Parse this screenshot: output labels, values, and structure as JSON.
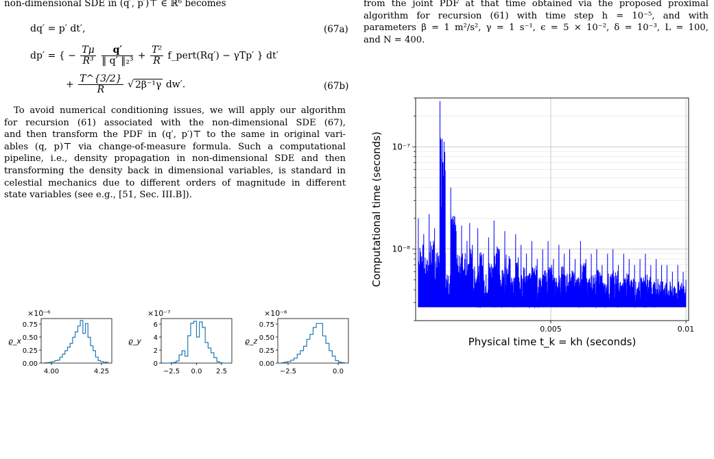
{
  "left": {
    "top_line": "non-dimensional SDE in (q′, p′)⊤ ∈ ℝ⁶ becomes",
    "eq67a": {
      "lhs": "dq′ = p′ dt′,",
      "num": "(67a)"
    },
    "eq67b": {
      "lhs": "dp′ =",
      "line1_a": "{ −",
      "t1_num": "Tμ",
      "t1_den": "R³",
      "t2_num": "q′",
      "t2_den": "‖ q′ ‖₂³",
      "plus": "+",
      "t3_num": "T²",
      "t3_den": "R",
      "t3_rest": "f_pert(Rq′) − γTp′ } dt′",
      "line2_plus": "+",
      "t4_num": "T^{3/2}",
      "t4_den": "R",
      "sqrt_arg": "2β⁻¹γ",
      "t4_rest": "dw′.",
      "num": "(67b)"
    },
    "paragraph": [
      "To avoid numerical conditioning issues, we will apply our algorithm",
      "for recursion (61) associated with the non-dimensional SDE (67),",
      "and then transform the PDF in (q′, p′)⊤ to the same in original vari-",
      "ables (q, p)⊤ via change-of-measure formula. Such a computational",
      "pipeline, i.e., density propagation in non-dimensional SDE and then",
      "transforming the density back in dimensional variables, is standard in",
      "celestial mechanics due to different orders of magnitude in different",
      "state variables (see e.g., [51, Sec. III.B])."
    ],
    "small_plots": [
      {
        "scale": "×10⁻⁶",
        "ylabel": "ϱ_x",
        "yticks": [
          "0.00",
          "0.25",
          "0.50",
          "0.75"
        ],
        "xticks": [
          "4.00",
          "4.25"
        ],
        "values": [
          0.01,
          0.01,
          0.02,
          0.03,
          0.05,
          0.06,
          0.12,
          0.18,
          0.25,
          0.32,
          0.4,
          0.52,
          0.63,
          0.75,
          0.86,
          0.6,
          0.8,
          0.52,
          0.35,
          0.25,
          0.12,
          0.05,
          0.03,
          0.02,
          0.02
        ]
      },
      {
        "scale": "×10⁻⁷",
        "ylabel": "ϱ_y",
        "yticks": [
          "0",
          "2",
          "4",
          "6"
        ],
        "xticks": [
          "−2.5",
          "0.0",
          "2.5"
        ],
        "values": [
          0.0,
          0.0,
          0.05,
          0.1,
          0.3,
          1.2,
          1.8,
          1.0,
          4.0,
          5.8,
          6.1,
          3.8,
          6.0,
          5.2,
          3.0,
          2.2,
          1.5,
          0.8,
          0.2,
          0.05,
          0.0,
          0.0
        ]
      },
      {
        "scale": "×10⁻⁶",
        "ylabel": "ϱ_z",
        "yticks": [
          "0.00",
          "0.25",
          "0.50",
          "0.75"
        ],
        "xticks": [
          "−2.5",
          "0.0"
        ],
        "values": [
          0.01,
          0.02,
          0.03,
          0.06,
          0.1,
          0.18,
          0.25,
          0.34,
          0.48,
          0.58,
          0.72,
          0.8,
          0.8,
          0.55,
          0.4,
          0.25,
          0.14,
          0.05,
          0.02,
          0.01
        ]
      }
    ]
  },
  "right": {
    "caption": [
      "from the joint PDF at that time obtained via the proposed proximal",
      "algorithm for recursion (61) with time step h = 10⁻⁵, and with",
      "parameters β = 1 m²/s², γ = 1 s⁻¹, ϵ = 5 × 10⁻², δ = 10⁻³, L = 100,",
      "and N = 400."
    ]
  },
  "chart_data": {
    "type": "line",
    "xlabel": "Physical time t_k = kh (seconds)",
    "ylabel": "Computational time (seconds)",
    "yscale": "log",
    "xlim": [
      0,
      0.0101
    ],
    "ylim": [
      2e-09,
      3e-07
    ],
    "xticks": [
      0.005,
      0.01
    ],
    "xtick_labels": [
      "0.005",
      "0.01"
    ],
    "yticks": [
      1e-08,
      1e-07
    ],
    "ytick_labels": [
      "10⁻⁸",
      "10⁻⁷"
    ],
    "grid": true,
    "color": "#0000ff",
    "series": [
      {
        "x": [
          0.0001,
          0.0003,
          0.0005,
          0.0007,
          0.0009,
          0.0011,
          0.0013,
          0.0015,
          0.0017,
          0.0019,
          0.002,
          0.0021,
          0.0023,
          0.0025,
          0.0027,
          0.0029,
          0.0031,
          0.0033,
          0.0035,
          0.0037,
          0.0039,
          0.0041,
          0.0043,
          0.0045,
          0.0047,
          0.0049,
          0.0051,
          0.0053,
          0.0055,
          0.0057,
          0.0059,
          0.0061,
          0.0063,
          0.0065,
          0.0067,
          0.0069,
          0.0071,
          0.0073,
          0.0075,
          0.0077,
          0.0079,
          0.0081,
          0.0083,
          0.0085,
          0.0087,
          0.0089,
          0.0091,
          0.0093,
          0.0095,
          0.0097,
          0.0099,
          0.01
        ],
        "y": [
          2e-08,
          1.4e-08,
          2.2e-08,
          1.6e-08,
          2.8e-07,
          9e-09,
          4e-08,
          1.5e-08,
          1.7e-08,
          1.2e-08,
          1.8e-08,
          1.1e-08,
          1.6e-08,
          9e-09,
          1.3e-08,
          1.9e-08,
          1e-08,
          1.5e-08,
          8e-09,
          1.4e-08,
          1.1e-08,
          9e-09,
          1.2e-08,
          8e-09,
          1e-08,
          1.2e-08,
          8e-09,
          1.1e-08,
          9e-09,
          1e-08,
          8e-09,
          1.2e-08,
          8e-09,
          9e-09,
          1e-08,
          7e-09,
          9e-09,
          1e-08,
          7e-09,
          9e-09,
          8e-09,
          7e-09,
          8e-09,
          9e-09,
          7e-09,
          8e-09,
          7e-09,
          7e-09,
          6e-09,
          7e-09,
          6e-09,
          5e-09
        ]
      }
    ]
  }
}
